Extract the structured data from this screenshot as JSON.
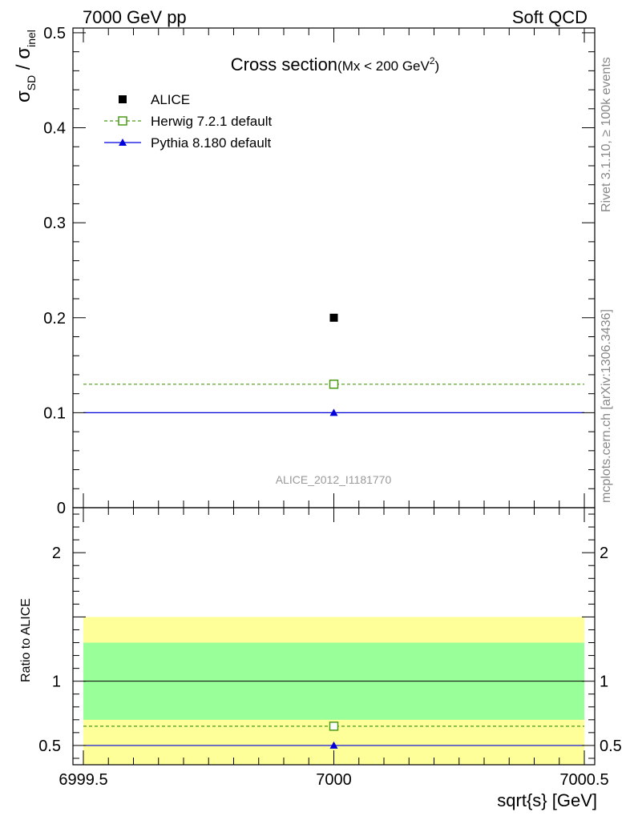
{
  "header": {
    "left": "7000 GeV pp",
    "right": "Soft QCD"
  },
  "side_text": {
    "rivet": "Rivet 3.1.10, ≥ 100k events",
    "mcplots": "mcplots.cern.ch [arXiv:1306.3436]"
  },
  "chart_data": {
    "type": "scatter",
    "title": "Cross section",
    "title_sub": "(Mx < 200 GeV",
    "title_sup": "2",
    "title_close": ")",
    "analysis_id": "ALICE_2012_I1181770",
    "ylabel_main": "σ",
    "ylabel_main_sub1": "SD",
    "ylabel_main_sep": " / σ",
    "ylabel_main_sub2": "inel",
    "ylabel_ratio": "Ratio to ALICE",
    "xlabel": "sqrt{s} [GeV]",
    "xlim": [
      6999.5,
      7000.5
    ],
    "x_ticks": [
      {
        "value": 6999.5,
        "label": "6999.5"
      },
      {
        "value": 7000,
        "label": "7000"
      },
      {
        "value": 7000.5,
        "label": "7000.5"
      }
    ],
    "main": {
      "ylim": [
        0,
        0.505
      ],
      "y_ticks": [
        {
          "value": 0,
          "label": "0"
        },
        {
          "value": 0.1,
          "label": "0.1"
        },
        {
          "value": 0.2,
          "label": "0.2"
        },
        {
          "value": 0.3,
          "label": "0.3"
        },
        {
          "value": 0.4,
          "label": "0.4"
        },
        {
          "value": 0.5,
          "label": "0.5"
        }
      ],
      "series": [
        {
          "name": "ALICE",
          "x": 7000,
          "y": 0.2,
          "color": "#000000",
          "marker": "square-filled"
        },
        {
          "name": "Herwig 7.2.1 default",
          "x": 7000,
          "y": 0.13,
          "color": "#4a9a14",
          "marker": "square-open",
          "line": "dashed"
        },
        {
          "name": "Pythia 8.180 default",
          "x": 7000,
          "y": 0.1,
          "color": "#0000dd",
          "marker": "triangle",
          "line": "solid"
        }
      ]
    },
    "ratio": {
      "ylim": [
        0.35,
        2.35
      ],
      "y_ticks": [
        {
          "value": 0.5,
          "label": "0.5"
        },
        {
          "value": 1,
          "label": "1"
        },
        {
          "value": 2,
          "label": "2"
        }
      ],
      "band_outer": [
        0.35,
        1.5
      ],
      "band_inner": [
        0.7,
        1.3
      ],
      "band_outer_color": "#ffff99",
      "band_inner_color": "#99ff99",
      "series": [
        {
          "name": "Herwig 7.2.1 default",
          "y": 0.65
        },
        {
          "name": "Pythia 8.180 default",
          "y": 0.5
        }
      ]
    }
  }
}
